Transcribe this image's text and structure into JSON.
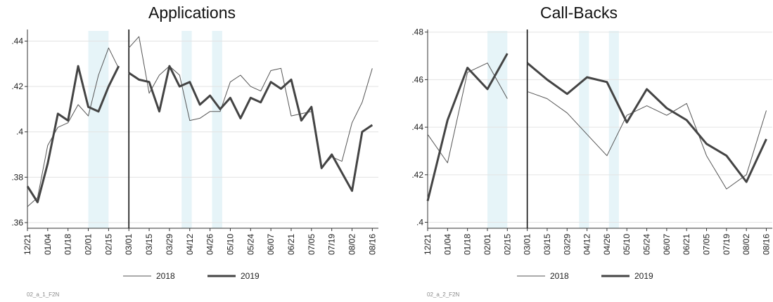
{
  "chart_data": [
    {
      "type": "line",
      "title": "Applications",
      "footer": "02_a_1_F2N",
      "xlabel": "",
      "ylabel": "",
      "x_tick_labels": [
        "12/21",
        "01/04",
        "01/18",
        "02/01",
        "02/15",
        "03/01",
        "03/15",
        "03/29",
        "04/12",
        "04/26",
        "05/10",
        "05/24",
        "06/07",
        "06/21",
        "07/05",
        "07/19",
        "08/02",
        "08/16"
      ],
      "y_ticks": [
        ".36",
        ".38",
        ".4",
        ".42",
        ".44"
      ],
      "y_tick_values": [
        0.36,
        0.38,
        0.4,
        0.42,
        0.44
      ],
      "ylim": [
        0.3575,
        0.4445
      ],
      "xlim": [
        0,
        34.6
      ],
      "vertical_line_x": 10,
      "shaded_bands": [
        [
          6,
          8
        ],
        [
          15.2,
          16.2
        ],
        [
          18.2,
          19.2
        ]
      ],
      "grid": true,
      "legend_position": "bottom",
      "series": [
        {
          "name": "2018",
          "segments": [
            {
              "x": [
                0,
                1,
                2,
                3,
                4,
                5,
                6,
                7,
                8,
                9
              ],
              "y": [
                0.367,
                0.371,
                0.394,
                0.402,
                0.404,
                0.412,
                0.407,
                0.425,
                0.437,
                0.428
              ]
            },
            {
              "x": [
                10,
                11,
                12,
                13,
                14,
                15,
                16,
                17,
                18,
                19,
                20,
                21,
                22,
                23,
                24,
                25,
                26,
                27,
                28,
                29,
                30,
                31,
                32,
                33,
                34
              ],
              "y": [
                0.437,
                0.442,
                0.417,
                0.425,
                0.429,
                0.425,
                0.405,
                0.406,
                0.409,
                0.409,
                0.422,
                0.425,
                0.42,
                0.418,
                0.427,
                0.428,
                0.407,
                0.408,
                0.409,
                0.384,
                0.389,
                0.387,
                0.404,
                0.413,
                0.428
              ]
            }
          ]
        },
        {
          "name": "2019",
          "segments": [
            {
              "x": [
                0,
                1,
                2,
                3,
                4,
                5,
                6,
                7,
                8,
                9
              ],
              "y": [
                0.376,
                0.369,
                0.386,
                0.408,
                0.405,
                0.429,
                0.411,
                0.409,
                0.42,
                0.429
              ]
            },
            {
              "x": [
                10,
                11,
                12,
                13,
                14,
                15,
                16,
                17,
                18,
                19,
                20,
                21,
                22,
                23,
                24,
                25,
                26,
                27,
                28,
                29,
                30,
                31,
                32,
                33,
                34
              ],
              "y": [
                0.426,
                0.423,
                0.422,
                0.409,
                0.429,
                0.42,
                0.422,
                0.412,
                0.416,
                0.41,
                0.415,
                0.406,
                0.415,
                0.413,
                0.422,
                0.419,
                0.423,
                0.405,
                0.411,
                0.384,
                0.39,
                0.382,
                0.374,
                0.4,
                0.403
              ]
            }
          ]
        }
      ]
    },
    {
      "type": "line",
      "title": "Call-Backs",
      "footer": "02_a_2_F2N",
      "xlabel": "",
      "ylabel": "",
      "x_tick_labels": [
        "12/21",
        "01/04",
        "01/18",
        "02/01",
        "02/15",
        "03/01",
        "03/15",
        "03/29",
        "04/12",
        "04/26",
        "05/10",
        "05/24",
        "06/07",
        "06/21",
        "07/05",
        "07/19",
        "08/02",
        "08/16"
      ],
      "y_ticks": [
        ".4",
        ".42",
        ".44",
        ".46",
        ".48"
      ],
      "y_tick_values": [
        0.4,
        0.42,
        0.44,
        0.46,
        0.48
      ],
      "ylim": [
        0.3975,
        0.4805
      ],
      "xlim": [
        0,
        17.3
      ],
      "vertical_line_x": 5,
      "shaded_bands": [
        [
          3,
          4
        ],
        [
          7.6,
          8.1
        ],
        [
          9.1,
          9.6
        ]
      ],
      "grid": true,
      "legend_position": "bottom",
      "series": [
        {
          "name": "2018",
          "segments": [
            {
              "x": [
                0,
                1,
                2,
                3,
                4
              ],
              "y": [
                0.437,
                0.425,
                0.463,
                0.467,
                0.452
              ]
            },
            {
              "x": [
                5,
                6,
                7,
                8,
                9,
                10,
                11,
                12,
                13,
                14,
                15,
                16,
                17
              ],
              "y": [
                0.455,
                0.452,
                0.446,
                0.437,
                0.428,
                0.445,
                0.449,
                0.445,
                0.45,
                0.428,
                0.414,
                0.42,
                0.447
              ]
            }
          ]
        },
        {
          "name": "2019",
          "segments": [
            {
              "x": [
                0,
                1,
                2,
                3,
                4
              ],
              "y": [
                0.409,
                0.443,
                0.465,
                0.456,
                0.471
              ]
            },
            {
              "x": [
                5,
                6,
                7,
                8,
                9,
                10,
                11,
                12,
                13,
                14,
                15,
                16,
                17
              ],
              "y": [
                0.467,
                0.46,
                0.454,
                0.461,
                0.459,
                0.442,
                0.456,
                0.448,
                0.443,
                0.433,
                0.428,
                0.417,
                0.435
              ]
            }
          ]
        }
      ]
    }
  ]
}
